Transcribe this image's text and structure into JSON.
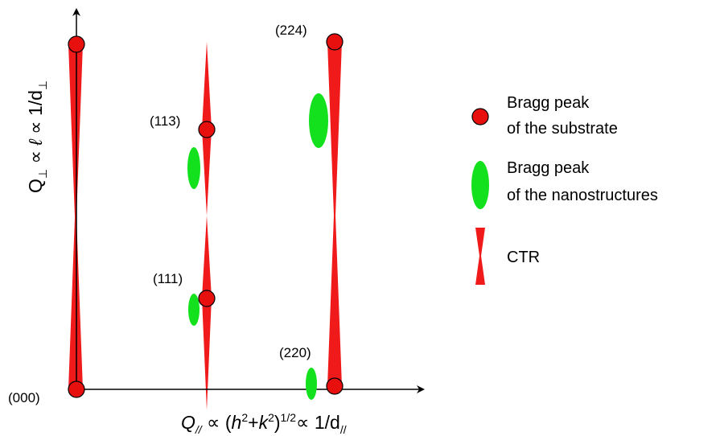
{
  "axes": {
    "y_label": {
      "q": "Q",
      "q_sub": "⊥",
      "prop1": " ∝ ",
      "ell": "ℓ",
      "prop2": " ∝ 1/d",
      "d_sub": "⊥"
    },
    "x_label": {
      "q": "Q",
      "q_sub": "//",
      "prop1": " ∝ (",
      "h": "h",
      "h_exp": "2",
      "plus": "+",
      "k": "k",
      "k_exp": "2",
      "close": ")",
      "half": "1/2",
      "prop2": "∝ 1/d",
      "d_sub": "//"
    }
  },
  "reflections": {
    "r000": "(000)",
    "r111": "(111)",
    "r113": "(113)",
    "r220": "(220)",
    "r224": "(224)"
  },
  "legend": {
    "substrate_line1": "Bragg peak",
    "substrate_line2": "of the substrate",
    "nano_line1": "Bragg peak",
    "nano_line2": "of the nanostructures",
    "ctr": "CTR"
  },
  "colors": {
    "substrate_peak": "#e8100f",
    "nanostructure_peak": "#14e11e",
    "ctr": "#f01a1a",
    "axis": "#000000"
  }
}
